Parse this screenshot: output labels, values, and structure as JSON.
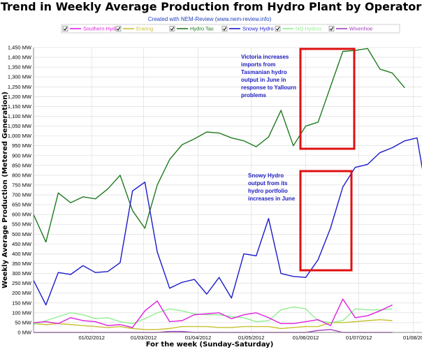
{
  "colors": {
    "southern_hydro": "#e020e0",
    "eraring": "#c8c030",
    "hydro_tas": "#1f7a1f",
    "snowy_hydro": "#1a1acc",
    "nq_hydros": "#90ee90",
    "wivenhoe": "#a040c0",
    "annotation_box": "#e01010",
    "annotation_text": "#2020c0",
    "subtitle": "#1f3fbf",
    "grid": "#d8d8d8"
  },
  "chart_data": {
    "type": "line",
    "title": "Trend in Weekly Average Production from Hydro Plant by Operator",
    "subtitle": "Created with NEM-Review (www.nem-review.info)",
    "xlabel": "For the week (Sunday-Saturday)",
    "ylabel": "Weekly Average Production (Metered Generation)",
    "ylim": [
      0,
      1450
    ],
    "y_ticks": [
      "0 MW",
      "50 MW",
      "100 MW",
      "150 MW",
      "200 MW",
      "250 MW",
      "300 MW",
      "350 MW",
      "400 MW",
      "450 MW",
      "500 MW",
      "550 MW",
      "600 MW",
      "650 MW",
      "700 MW",
      "750 MW",
      "800 MW",
      "850 MW",
      "900 MW",
      "950 MW",
      "1,000 MW",
      "1,050 MW",
      "1,100 MW",
      "1,150 MW",
      "1,200 MW",
      "1,250 MW",
      "1,300 MW",
      "1,350 MW",
      "1,400 MW",
      "1,450 MW"
    ],
    "x_ticks": [
      {
        "label": "01/02/2012",
        "week": 4.7
      },
      {
        "label": "01/03/2012",
        "week": 8.9
      },
      {
        "label": "01/04/2012",
        "week": 13.3
      },
      {
        "label": "01/05/2012",
        "week": 17.6
      },
      {
        "label": "01/06/2012",
        "week": 22.0
      },
      {
        "label": "01/07/2012",
        "week": 26.3
      },
      {
        "label": "01/08/20",
        "week": 30.7
      }
    ],
    "x_range": [
      0,
      31.4
    ],
    "grid": true,
    "legend_position": "top",
    "legend_order": [
      "Southern Hydro",
      "Eraring",
      "Hydro Tas",
      "Snowy Hydro",
      "NQ Hydros",
      "Wivenhoe"
    ],
    "series": [
      {
        "name": "Hydro Tas",
        "color_key": "hydro_tas",
        "values": [
          600,
          460,
          710,
          660,
          690,
          680,
          730,
          800,
          620,
          530,
          750,
          880,
          955,
          985,
          1020,
          1015,
          990,
          975,
          945,
          995,
          1130,
          950,
          1050,
          1070,
          1250,
          1430,
          1435,
          1445,
          1340,
          1320,
          1245
        ]
      },
      {
        "name": "Snowy Hydro",
        "color_key": "snowy_hydro",
        "values": [
          265,
          140,
          305,
          295,
          340,
          305,
          310,
          355,
          720,
          765,
          410,
          225,
          255,
          270,
          195,
          280,
          175,
          400,
          390,
          580,
          300,
          285,
          280,
          370,
          530,
          740,
          840,
          855,
          915,
          940,
          975,
          990,
          625
        ]
      },
      {
        "name": "Southern Hydro",
        "color_key": "southern_hydro",
        "values": [
          50,
          55,
          45,
          75,
          60,
          55,
          35,
          40,
          25,
          110,
          160,
          55,
          60,
          90,
          95,
          100,
          70,
          90,
          100,
          75,
          45,
          45,
          55,
          65,
          35,
          170,
          75,
          85,
          110,
          140
        ]
      },
      {
        "name": "NQ Hydros",
        "color_key": "nq_hydros",
        "values": [
          40,
          60,
          80,
          100,
          90,
          70,
          75,
          55,
          45,
          70,
          100,
          120,
          110,
          95,
          90,
          90,
          80,
          75,
          55,
          60,
          115,
          130,
          120,
          60,
          50,
          60,
          120,
          115,
          115,
          120
        ]
      },
      {
        "name": "Eraring",
        "color_key": "eraring",
        "values": [
          45,
          40,
          45,
          40,
          35,
          30,
          25,
          30,
          20,
          15,
          15,
          20,
          30,
          30,
          30,
          25,
          25,
          30,
          30,
          30,
          20,
          25,
          30,
          30,
          50,
          50,
          55,
          60,
          65,
          60
        ]
      },
      {
        "name": "Wivenhoe",
        "color_key": "wivenhoe",
        "values": [
          0,
          0,
          0,
          0,
          0,
          0,
          0,
          0,
          0,
          0,
          0,
          5,
          5,
          0,
          0,
          0,
          0,
          0,
          0,
          0,
          0,
          0,
          0,
          10,
          15,
          0,
          0,
          0,
          0,
          0
        ]
      }
    ],
    "annotations": [
      {
        "text_lines": [
          "Victoria increases",
          "imports from",
          "Tasmanian hydro",
          "output in June in",
          "response to Yallourn",
          "problems"
        ]
      },
      {
        "text_lines": [
          "Snowy Hydro",
          "output from its",
          "hydro portfolio",
          "increases in June"
        ]
      }
    ]
  }
}
